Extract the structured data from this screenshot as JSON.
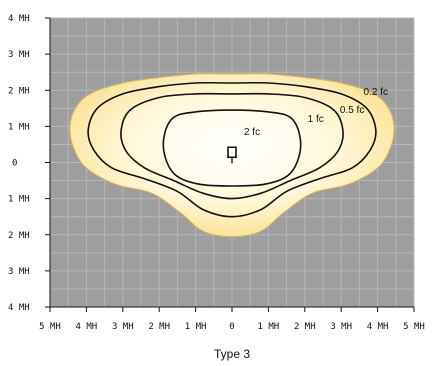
{
  "chart_data": {
    "type": "area",
    "title": "Type 3",
    "xlabel": "",
    "ylabel": "",
    "xlim": [
      -5,
      5
    ],
    "ylim": [
      -4,
      4
    ],
    "grid": true,
    "x_ticks": [
      {
        "value": -5,
        "label": "5 MH"
      },
      {
        "value": -4,
        "label": "4 MH"
      },
      {
        "value": -3,
        "label": "3 MH"
      },
      {
        "value": -2,
        "label": "2 MH"
      },
      {
        "value": -1,
        "label": "1 MH"
      },
      {
        "value": 0,
        "label": "0"
      },
      {
        "value": 1,
        "label": "1 MH"
      },
      {
        "value": 2,
        "label": "2 MH"
      },
      {
        "value": 3,
        "label": "3 MH"
      },
      {
        "value": 4,
        "label": "4 MH"
      },
      {
        "value": 5,
        "label": "5 MH"
      }
    ],
    "y_ticks": [
      {
        "value": 4,
        "label": "4 MH"
      },
      {
        "value": 3,
        "label": "3 MH"
      },
      {
        "value": 2,
        "label": "2 MH"
      },
      {
        "value": 1,
        "label": "1 MH"
      },
      {
        "value": 0,
        "label": "0"
      },
      {
        "value": -1,
        "label": "1 MH"
      },
      {
        "value": -2,
        "label": "2 MH"
      },
      {
        "value": -3,
        "label": "3 MH"
      },
      {
        "value": -4,
        "label": "4 MH"
      }
    ],
    "series": [
      {
        "name": "0.2 fc",
        "label_at": [
          3.95,
          1.95
        ],
        "points": [
          [
            0,
            2.45
          ],
          [
            -1,
            2.45
          ],
          [
            -2,
            2.35
          ],
          [
            -3,
            2.2
          ],
          [
            -3.9,
            1.9
          ],
          [
            -4.3,
            1.5
          ],
          [
            -4.45,
            1
          ],
          [
            -4.35,
            0.4
          ],
          [
            -4,
            -0.15
          ],
          [
            -3.2,
            -0.6
          ],
          [
            -2.2,
            -0.85
          ],
          [
            -1.4,
            -1.4
          ],
          [
            -0.8,
            -1.9
          ],
          [
            0,
            -2.05
          ],
          [
            0.8,
            -1.9
          ],
          [
            1.4,
            -1.4
          ],
          [
            2.2,
            -0.85
          ],
          [
            3.2,
            -0.6
          ],
          [
            4,
            -0.15
          ],
          [
            4.35,
            0.4
          ],
          [
            4.45,
            1
          ],
          [
            4.3,
            1.5
          ],
          [
            3.9,
            1.9
          ],
          [
            3,
            2.2
          ],
          [
            2,
            2.35
          ],
          [
            1,
            2.45
          ]
        ],
        "fill": "#fdf0b0"
      },
      {
        "name": "0.5 fc",
        "label_at": [
          3.3,
          1.45
        ],
        "points": [
          [
            0,
            2.2
          ],
          [
            -1,
            2.2
          ],
          [
            -2,
            2.1
          ],
          [
            -3,
            1.9
          ],
          [
            -3.7,
            1.5
          ],
          [
            -3.95,
            0.9
          ],
          [
            -3.8,
            0.35
          ],
          [
            -3.3,
            -0.15
          ],
          [
            -2.4,
            -0.45
          ],
          [
            -1.5,
            -0.8
          ],
          [
            -0.8,
            -1.3
          ],
          [
            0,
            -1.5
          ],
          [
            0.8,
            -1.3
          ],
          [
            1.5,
            -0.8
          ],
          [
            2.4,
            -0.45
          ],
          [
            3.3,
            -0.15
          ],
          [
            3.8,
            0.35
          ],
          [
            3.95,
            0.9
          ],
          [
            3.7,
            1.5
          ],
          [
            3,
            1.9
          ],
          [
            2,
            2.1
          ],
          [
            1,
            2.2
          ]
        ],
        "fill": "#fef5c8"
      },
      {
        "name": "1 fc",
        "label_at": [
          2.3,
          1.2
        ],
        "points": [
          [
            0,
            1.9
          ],
          [
            -1,
            1.9
          ],
          [
            -2,
            1.8
          ],
          [
            -2.8,
            1.45
          ],
          [
            -3.05,
            0.85
          ],
          [
            -2.9,
            0.3
          ],
          [
            -2.4,
            -0.15
          ],
          [
            -1.6,
            -0.5
          ],
          [
            -0.8,
            -0.85
          ],
          [
            0,
            -1
          ],
          [
            0.8,
            -0.85
          ],
          [
            1.6,
            -0.5
          ],
          [
            2.4,
            -0.15
          ],
          [
            2.9,
            0.3
          ],
          [
            3.05,
            0.85
          ],
          [
            2.8,
            1.45
          ],
          [
            2,
            1.8
          ],
          [
            1,
            1.9
          ]
        ],
        "fill": "#fffae0"
      },
      {
        "name": "2 fc",
        "label_at": [
          0.55,
          0.85
        ],
        "points": [
          [
            0,
            1.45
          ],
          [
            -1,
            1.4
          ],
          [
            -1.6,
            1.25
          ],
          [
            -1.85,
            0.8
          ],
          [
            -1.85,
            0.2
          ],
          [
            -1.55,
            -0.35
          ],
          [
            -0.9,
            -0.6
          ],
          [
            0,
            -0.65
          ],
          [
            0.9,
            -0.6
          ],
          [
            1.55,
            -0.35
          ],
          [
            1.85,
            0.2
          ],
          [
            1.85,
            0.8
          ],
          [
            1.6,
            1.25
          ],
          [
            1,
            1.4
          ]
        ],
        "fill": "#fffdf5"
      }
    ],
    "fixture": {
      "x": 0,
      "y": 0.2
    }
  },
  "colors": {
    "plot_background": "#9e9e9e",
    "grid": "#b7b7b7",
    "contour_stroke": "#111111",
    "outer_glow": "#fae49a"
  }
}
